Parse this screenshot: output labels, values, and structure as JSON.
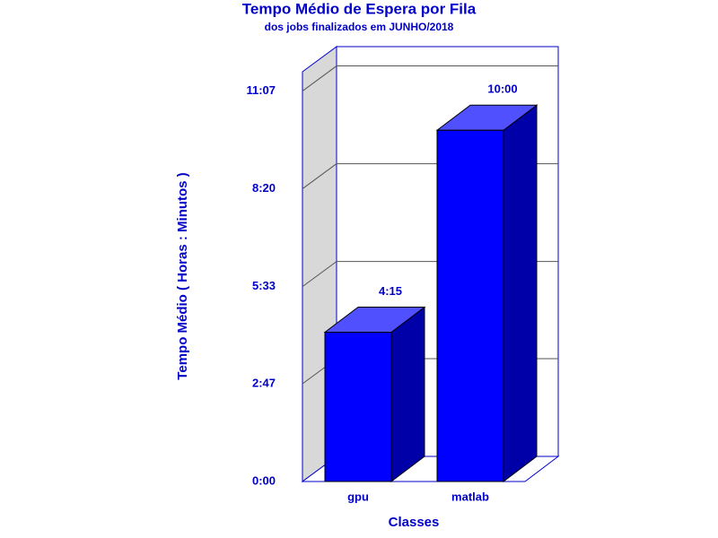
{
  "chart_data": {
    "type": "bar3d",
    "title": "Tempo Médio de Espera por Fila",
    "subtitle": "dos jobs finalizados em JUNHO/2018",
    "x_label": "Classes",
    "y_label": "Tempo Médio ( Horas : Minutos )",
    "categories": [
      "gpu",
      "matlab"
    ],
    "values": [
      255,
      600
    ],
    "value_labels": [
      "4:15",
      "10:00"
    ],
    "color": "#0000ff",
    "ylim": [
      0,
      700
    ],
    "yticks": [
      {
        "value": 0,
        "label": "0:00"
      },
      {
        "value": 167,
        "label": "2:47"
      },
      {
        "value": 333,
        "label": "5:33"
      },
      {
        "value": 500,
        "label": "8:20"
      },
      {
        "value": 667,
        "label": "11:07"
      }
    ],
    "grid": true
  }
}
